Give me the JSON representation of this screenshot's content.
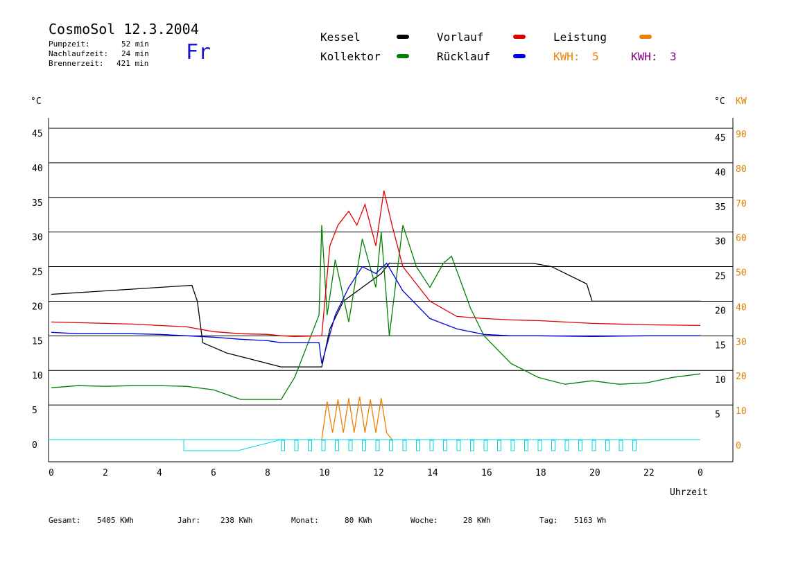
{
  "header": {
    "title": "CosmoSol 12.3.2004",
    "day": "Fr",
    "stats": [
      {
        "label": "Pumpzeit:",
        "value": "52 min"
      },
      {
        "label": "Nachlaufzeit:",
        "value": "24 min"
      },
      {
        "label": "Brennerzeit:",
        "value": "421 min"
      }
    ]
  },
  "legend": {
    "kessel": {
      "label": "Kessel",
      "color": "#000000"
    },
    "kollektor": {
      "label": "Kollektor",
      "color": "#008000"
    },
    "vorlauf": {
      "label": "Vorlauf",
      "color": "#e00000"
    },
    "ruecklauf": {
      "label": "Rücklauf",
      "color": "#0000e0"
    },
    "leistung": {
      "label": "Leistung",
      "color": "#f08000"
    },
    "kwh1": {
      "label": "KWH:",
      "value": "5",
      "color": "#f08000"
    },
    "kwh2": {
      "label": "KWH:",
      "value": "3",
      "color": "#800080"
    }
  },
  "totals": [
    {
      "label": "Gesamt:",
      "value": "5405 KWh"
    },
    {
      "label": "Jahr:",
      "value": "238 KWh"
    },
    {
      "label": "Monat:",
      "value": "80 KWh"
    },
    {
      "label": "Woche:",
      "value": "28 KWh"
    },
    {
      "label": "Tag:",
      "value": "5163 Wh"
    }
  ],
  "chart_data": {
    "type": "line",
    "xlabel": "Uhrzeit",
    "ylabel_left": "°C",
    "ylabel_right": "°C",
    "ylabel_right2": "KW",
    "xlim": [
      0,
      24
    ],
    "ylim": [
      0,
      45
    ],
    "x_ticks": [
      "0",
      "2",
      "4",
      "6",
      "8",
      "10",
      "12",
      "14",
      "16",
      "18",
      "20",
      "22",
      "0"
    ],
    "y_ticks_left": [
      "0",
      "5",
      "10",
      "15",
      "20",
      "25",
      "30",
      "35",
      "40",
      "45"
    ],
    "y_ticks_right": [
      "5",
      "10",
      "15",
      "20",
      "25",
      "30",
      "35",
      "40",
      "45"
    ],
    "y_ticks_right_kw": [
      "0",
      "10",
      "20",
      "30",
      "40",
      "50",
      "60",
      "70",
      "80",
      "90"
    ],
    "grid": true,
    "series": [
      {
        "name": "Kessel",
        "color": "#000000",
        "x": [
          0,
          5.2,
          5.4,
          5.6,
          6.5,
          8.5,
          10,
          10.3,
          10.8,
          11.5,
          12.2,
          12.5,
          17.8,
          18.5,
          19.8,
          20,
          24
        ],
        "y": [
          21,
          22.3,
          20,
          14,
          12.5,
          10.5,
          10.5,
          16,
          20,
          22,
          24,
          25.5,
          25.5,
          25,
          22.5,
          20,
          20
        ]
      },
      {
        "name": "Kollektor",
        "color": "#008000",
        "x": [
          0,
          1,
          2,
          3,
          4,
          5,
          6,
          6.5,
          7,
          8.5,
          9,
          9.5,
          9.9,
          10,
          10.2,
          10.5,
          11,
          11.5,
          12,
          12.2,
          12.5,
          13,
          13.5,
          14,
          14.5,
          14.8,
          15.5,
          16,
          17,
          18,
          18.5,
          19,
          20,
          21,
          22,
          23,
          24
        ],
        "y": [
          7.5,
          7.8,
          7.7,
          7.8,
          7.8,
          7.7,
          7.2,
          6.5,
          5.8,
          5.8,
          9,
          14,
          18,
          31,
          18,
          26,
          17,
          29,
          22,
          30,
          15,
          31,
          25,
          22,
          25.5,
          26.5,
          19,
          15,
          11,
          9,
          8.5,
          8,
          8.5,
          8,
          8.2,
          9,
          9.5
        ]
      },
      {
        "name": "Vorlauf",
        "color": "#e00000",
        "x": [
          0,
          1,
          2,
          3,
          4,
          5,
          6,
          7,
          8,
          8.5,
          9,
          10,
          10.3,
          10.6,
          11,
          11.3,
          11.6,
          12,
          12.3,
          12.6,
          13,
          14,
          15,
          16,
          17,
          18,
          19,
          20,
          22,
          24
        ],
        "y": [
          17,
          16.9,
          16.8,
          16.7,
          16.5,
          16.3,
          15.6,
          15.3,
          15.2,
          15,
          14.9,
          15,
          28,
          31,
          33,
          31,
          34,
          28,
          36,
          31,
          25,
          20,
          17.8,
          17.5,
          17.3,
          17.2,
          17,
          16.8,
          16.6,
          16.5
        ]
      },
      {
        "name": "Rücklauf",
        "color": "#0000e0",
        "x": [
          0,
          1,
          2,
          3,
          4,
          5,
          6,
          7,
          8,
          8.5,
          9,
          9.9,
          10,
          10.5,
          11,
          11.5,
          12,
          12.4,
          13,
          14,
          15,
          16,
          17,
          18,
          20,
          22,
          24
        ],
        "y": [
          15.5,
          15.3,
          15.3,
          15.3,
          15.2,
          15,
          14.8,
          14.5,
          14.3,
          14,
          14,
          14,
          11,
          18,
          22,
          25,
          24,
          25.5,
          21.5,
          17.5,
          16,
          15.2,
          15,
          15,
          14.9,
          15,
          15
        ]
      },
      {
        "name": "Leistung",
        "color": "#f08000",
        "x": [
          10,
          10.2,
          10.4,
          10.6,
          10.8,
          11,
          11.2,
          11.4,
          11.6,
          11.8,
          12,
          12.2,
          12.4,
          12.6
        ],
        "y": [
          0,
          5.5,
          1,
          5.8,
          1,
          6,
          1,
          6.2,
          1,
          5.8,
          1,
          6,
          1,
          0
        ]
      }
    ]
  }
}
